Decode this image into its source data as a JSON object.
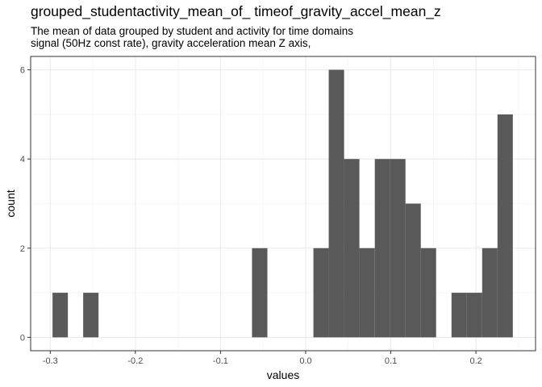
{
  "chart_data": {
    "type": "histogram",
    "title": "grouped_studentactivity_mean_of_ timeof_gravity_accel_mean_z",
    "subtitle": [
      "The mean of data grouped by student and activity for time domains",
      "signal (50Hz const rate), gravity acceleration mean Z axis,"
    ],
    "xlabel": "values",
    "ylabel": "count",
    "xlim": [
      -0.323,
      0.27
    ],
    "ylim": [
      -0.3,
      6.3
    ],
    "x_ticks": [
      -0.3,
      -0.2,
      -0.1,
      0.0,
      0.1,
      0.2
    ],
    "x_tick_labels": [
      "-0.3",
      "-0.2",
      "-0.1",
      "0.0",
      "0.1",
      "0.2"
    ],
    "y_ticks": [
      0,
      2,
      4,
      6
    ],
    "y_tick_labels": [
      "0",
      "2",
      "4",
      "6"
    ],
    "bin_width": 0.01802,
    "bins": [
      {
        "x0": -0.2973,
        "count": 1
      },
      {
        "x0": -0.2613,
        "count": 1
      },
      {
        "x0": -0.063,
        "count": 2
      },
      {
        "x0": 0.0091,
        "count": 2
      },
      {
        "x0": 0.0271,
        "count": 6
      },
      {
        "x0": 0.0451,
        "count": 4
      },
      {
        "x0": 0.0631,
        "count": 2
      },
      {
        "x0": 0.0812,
        "count": 4
      },
      {
        "x0": 0.0992,
        "count": 4
      },
      {
        "x0": 0.1172,
        "count": 3
      },
      {
        "x0": 0.1352,
        "count": 2
      },
      {
        "x0": 0.1713,
        "count": 1
      },
      {
        "x0": 0.1893,
        "count": 1
      },
      {
        "x0": 0.2073,
        "count": 2
      },
      {
        "x0": 0.2253,
        "count": 5
      }
    ],
    "bar_color": "#595959",
    "grid": true,
    "legend": "none"
  }
}
